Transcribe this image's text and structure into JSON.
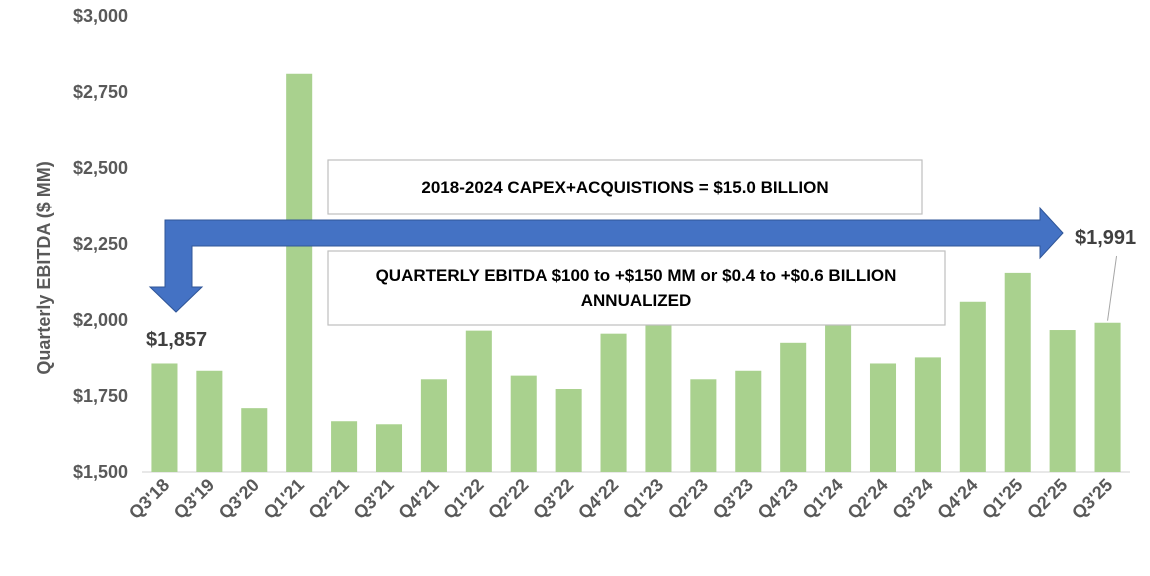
{
  "chart_data": {
    "type": "bar",
    "title": "",
    "ylabel": "Quarterly EBITDA ($ MM)",
    "xlabel": "",
    "ylim": [
      1500,
      3000
    ],
    "yticks": [
      1500,
      1750,
      2000,
      2250,
      2500,
      2750,
      3000
    ],
    "ytick_labels": [
      "$1,500",
      "$1,750",
      "$2,000",
      "$2,250",
      "$2,500",
      "$2,750",
      "$3,000"
    ],
    "grid": false,
    "bar_color": "#A9D18E",
    "categories": [
      "Q3'18",
      "Q3'19",
      "Q3'20",
      "Q1'21",
      "Q2'21",
      "Q3'21",
      "Q4'21",
      "Q1'22",
      "Q2'22",
      "Q3'22",
      "Q4'22",
      "Q1'23",
      "Q2'23",
      "Q3'23",
      "Q4'23",
      "Q1'24",
      "Q2'24",
      "Q3'24",
      "Q4'24",
      "Q1'25",
      "Q2'25",
      "Q3'25"
    ],
    "values": [
      1857,
      1833,
      1710,
      2810,
      1667,
      1657,
      1805,
      1965,
      1817,
      1773,
      1955,
      2000,
      1805,
      1833,
      1925,
      2000,
      1857,
      1877,
      2060,
      2155,
      1967,
      1991
    ],
    "data_labels": [
      {
        "index": 0,
        "text": "$1,857"
      },
      {
        "index": 21,
        "text": "$1,991"
      }
    ],
    "annotations": {
      "box1": "2018-2024 CAPEX+ACQUISTIONS = $15.0 BILLION",
      "box2_line1": "QUARTERLY EBITDA $100 to +$150 MM or $0.4 to +$0.6 BILLION",
      "box2_line2": "ANNUALIZED"
    },
    "arrow_color": "#4472C4"
  }
}
